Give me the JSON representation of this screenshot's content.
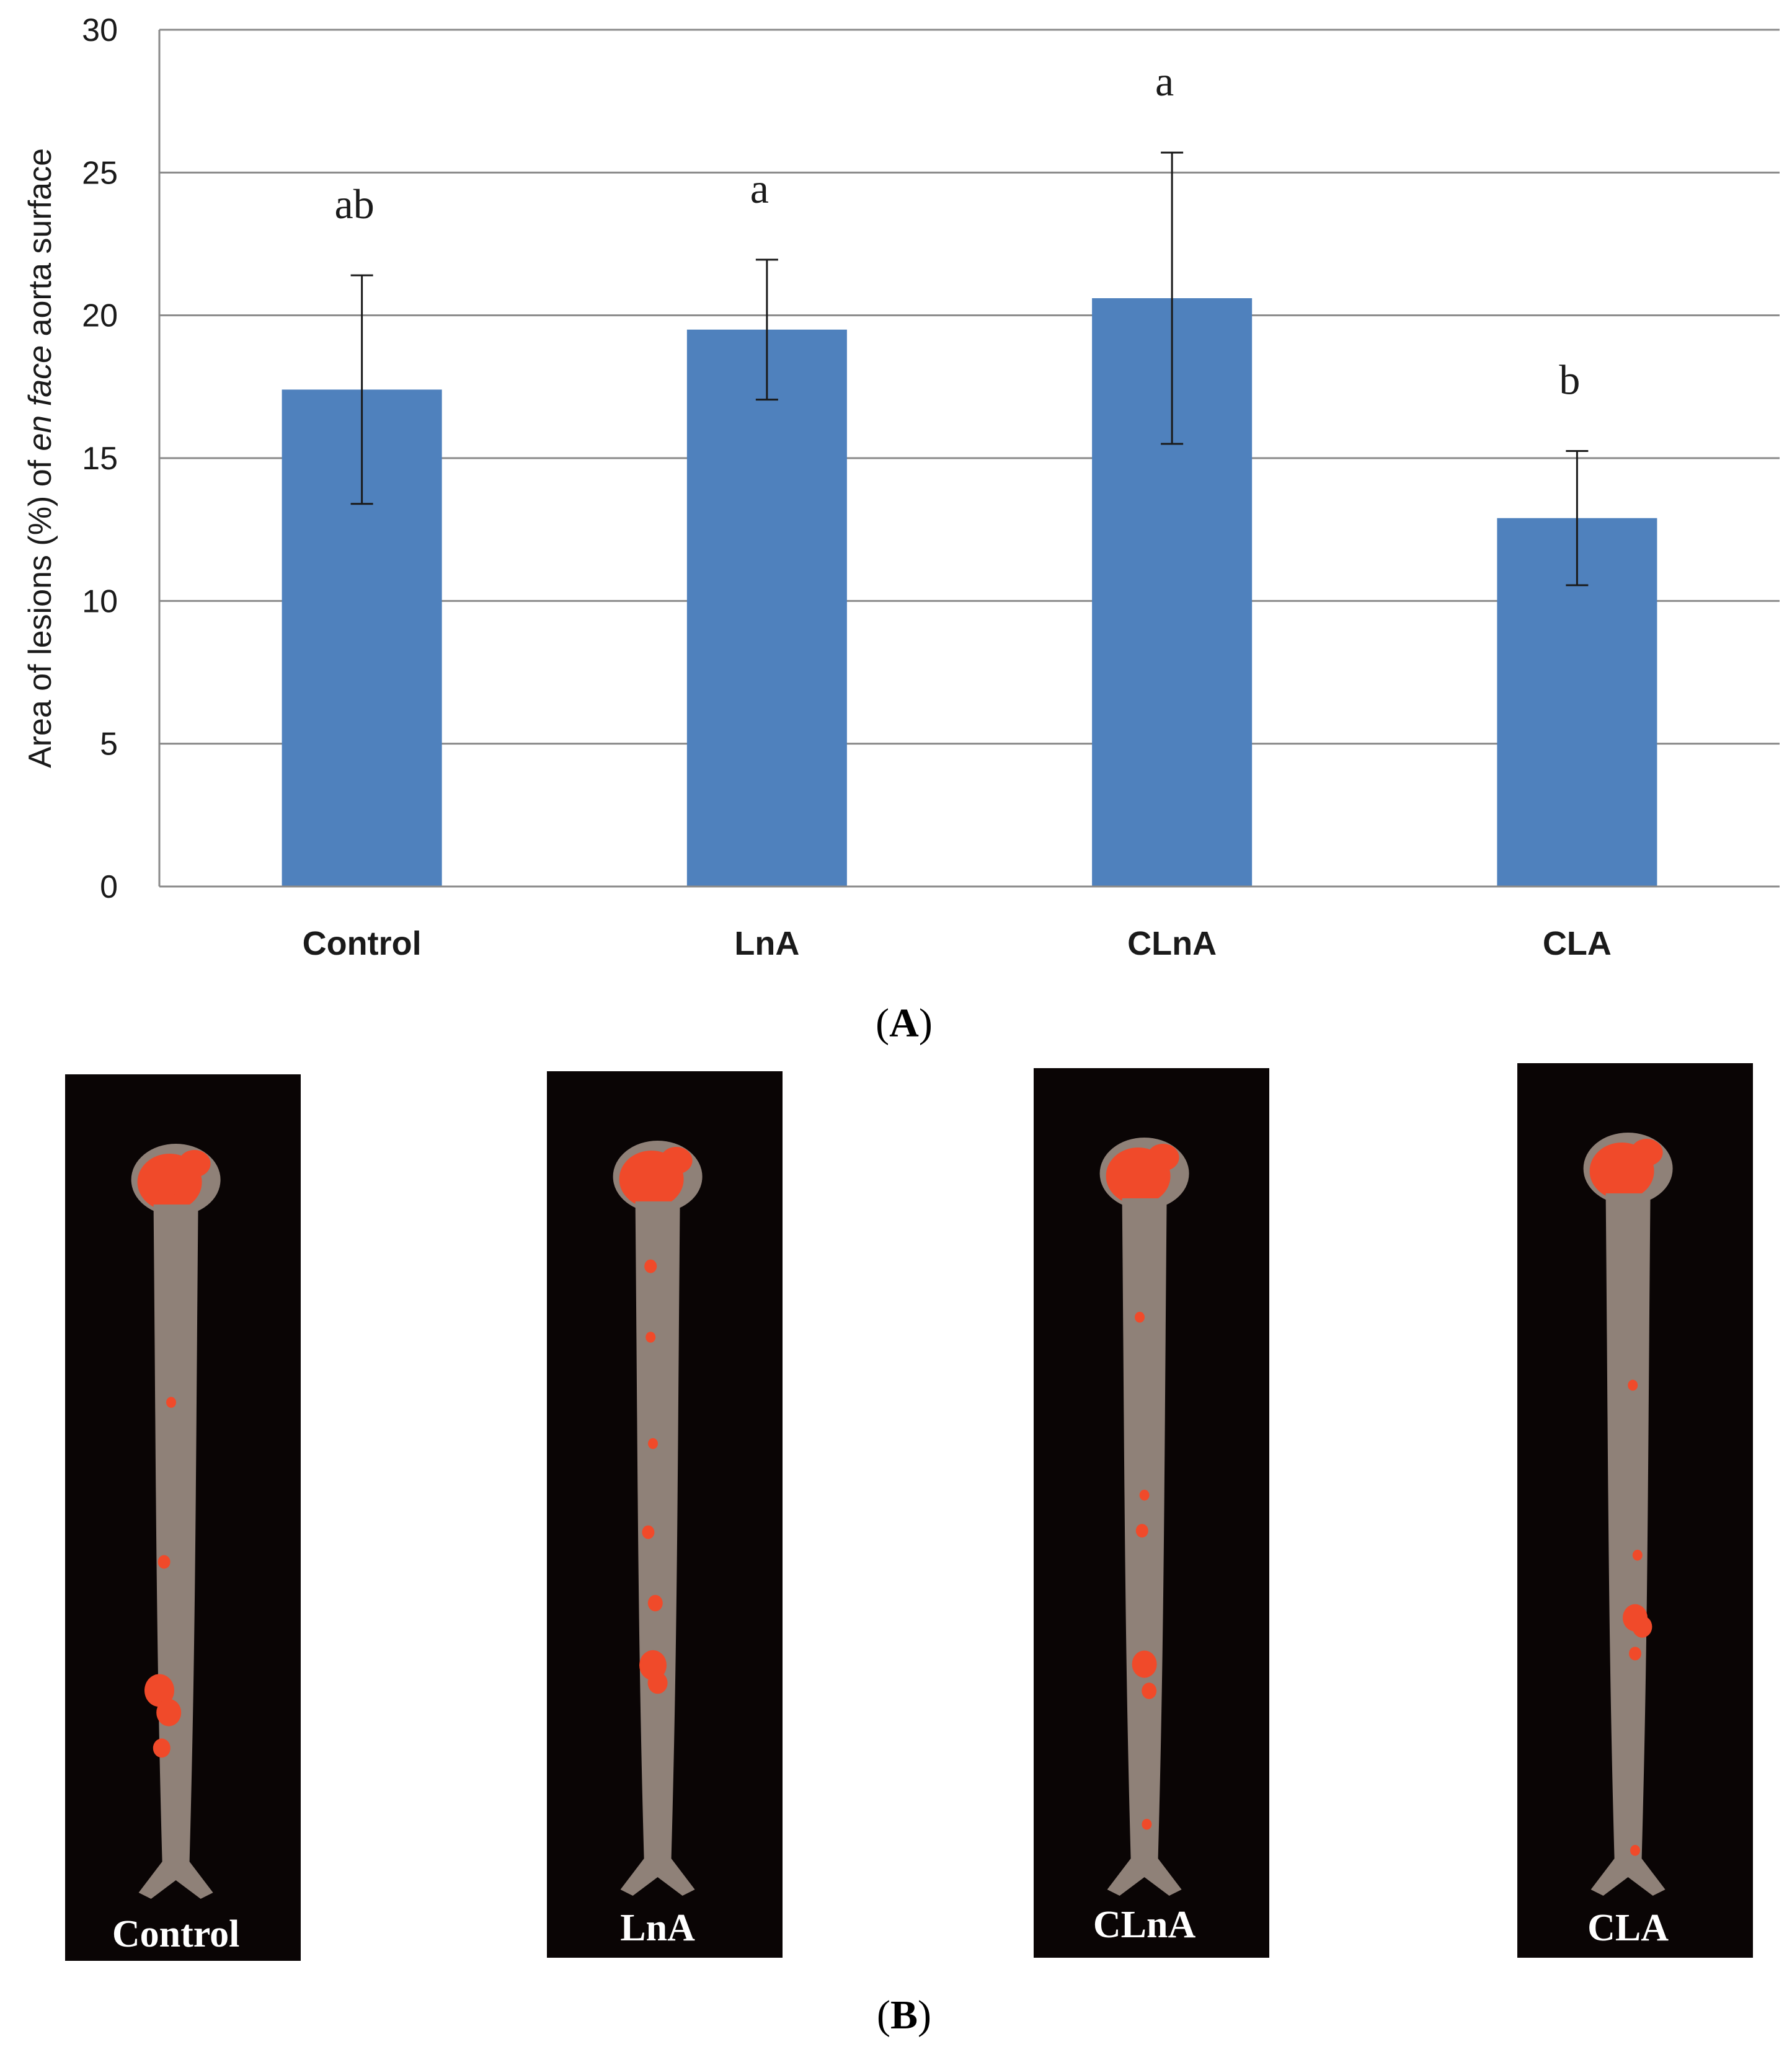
{
  "chart_data": {
    "type": "bar",
    "title": "",
    "xlabel": "",
    "ylabel": {
      "prefix": "Area of lesions (%) of ",
      "italic": "en face",
      "suffix": " aorta surface"
    },
    "ylim": [
      0,
      30
    ],
    "yticks": [
      "0",
      "5",
      "10",
      "15",
      "20",
      "25",
      "30"
    ],
    "categories": [
      "Control",
      "LnA",
      "CLnA",
      "CLA"
    ],
    "values": [
      17.4,
      19.5,
      20.6,
      12.9
    ],
    "errors": [
      4.0,
      2.45,
      5.1,
      2.35
    ],
    "significance": [
      "ab",
      "a",
      "a",
      "b"
    ],
    "grid": true,
    "bar_color": "#4f81bd"
  },
  "panels": {
    "a_label": {
      "open": "(",
      "letter": "A",
      "close": ")"
    },
    "b_label": {
      "open": "(",
      "letter": "B",
      "close": ")"
    }
  },
  "photos": {
    "labels": [
      "Control",
      "LnA",
      "CLnA",
      "CLA"
    ],
    "background_color": "#0a0505",
    "aorta_color": "#8f8178",
    "lesion_color": "#f04a2a"
  }
}
